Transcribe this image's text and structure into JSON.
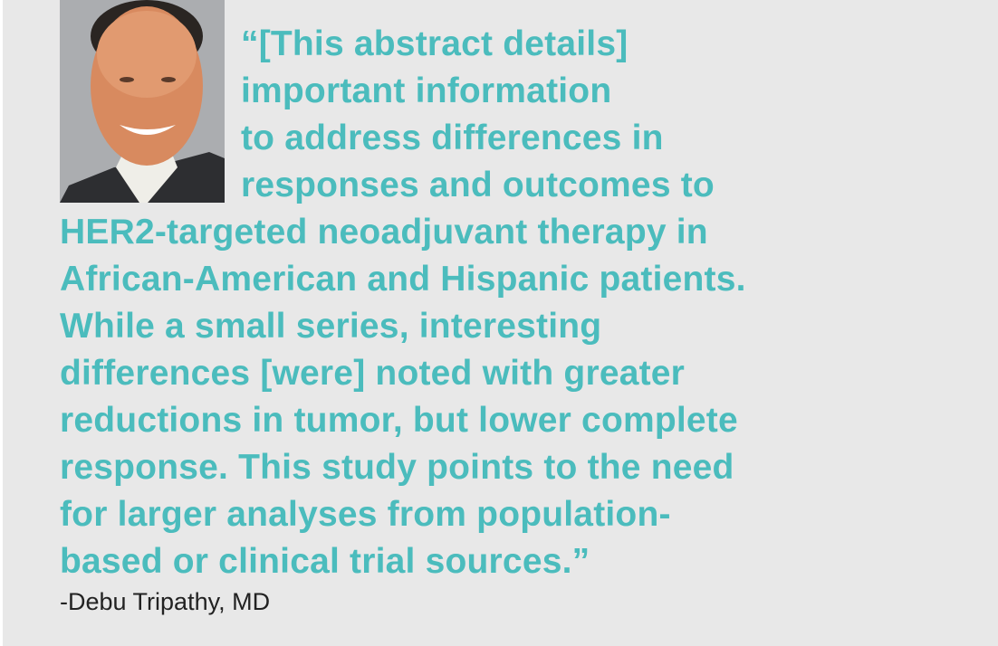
{
  "quote": {
    "lines": [
      "“[This abstract details]",
      "important information",
      "to address differences in",
      "responses and outcomes to",
      "HER2-targeted neoadjuvant therapy in",
      "African-American and Hispanic patients.",
      "While a small series, interesting",
      "differences [were] noted with greater",
      "reductions in tumor, but lower complete",
      "response.  This study points to the need",
      "for larger analyses from population-",
      "based or clinical trial sources.”"
    ],
    "attribution": "-Debu Tripathy, MD"
  },
  "colors": {
    "quote_text": "#4bbcbd",
    "background": "#e8e8e8"
  }
}
